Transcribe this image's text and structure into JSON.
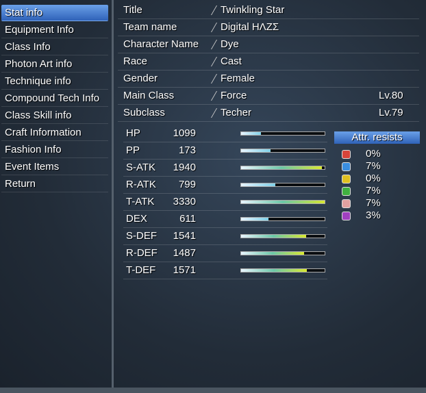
{
  "menu": {
    "selected": 0,
    "items": [
      "Stat info",
      "Equipment Info",
      "Class Info",
      "Photon Art info",
      "Technique info",
      "Compound Tech Info",
      "Class Skill info",
      "Craft Information",
      "Fashion Info",
      "Event Items",
      "Return"
    ]
  },
  "profile": {
    "rows": [
      {
        "label": "Title",
        "value": "Twinkling Star"
      },
      {
        "label": "Team name",
        "value": "Digital HΛZΣ"
      },
      {
        "label": "Character Name",
        "value": "Dye"
      },
      {
        "label": "Race",
        "value": "Cast"
      },
      {
        "label": "Gender",
        "value": "Female"
      },
      {
        "label": "Main Class",
        "value": "Force",
        "level": "Lv.80"
      },
      {
        "label": "Subclass",
        "value": "Techer",
        "level": "Lv.79"
      }
    ]
  },
  "stats": {
    "rows": [
      {
        "label": "HP",
        "value": 1099
      },
      {
        "label": "PP",
        "value": 173
      },
      {
        "label": "S-ATK",
        "value": 1940
      },
      {
        "label": "R-ATK",
        "value": 799
      },
      {
        "label": "T-ATK",
        "value": 3330
      },
      {
        "label": "DEX",
        "value": 611
      },
      {
        "label": "S-DEF",
        "value": 1541
      },
      {
        "label": "R-DEF",
        "value": 1487
      },
      {
        "label": "T-DEF",
        "value": 1571
      }
    ]
  },
  "attr_resists": {
    "title": "Attr. resists",
    "values": [
      "0%",
      "7%",
      "0%",
      "7%",
      "7%",
      "3%"
    ]
  }
}
